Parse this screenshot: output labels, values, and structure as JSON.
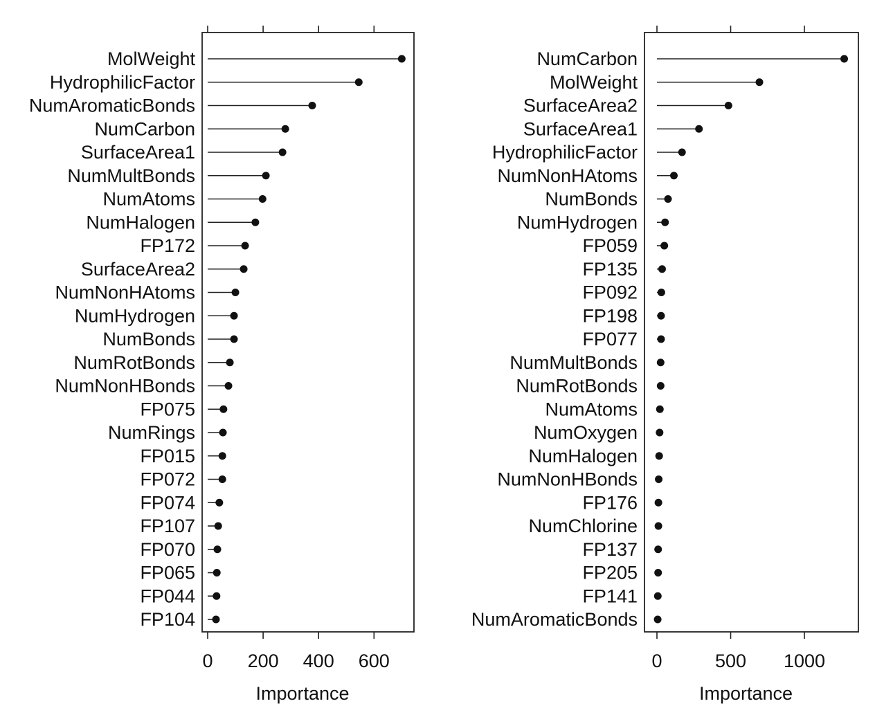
{
  "chart_data": [
    {
      "type": "dot",
      "xlabel": "Importance",
      "xlim": [
        0,
        700
      ],
      "xticks": [
        0,
        200,
        400,
        600
      ],
      "xtick_labels": [
        "0",
        "200",
        "400",
        "600"
      ],
      "categories": [
        "MolWeight",
        "HydrophilicFactor",
        "NumAromaticBonds",
        "NumCarbon",
        "SurfaceArea1",
        "NumMultBonds",
        "NumAtoms",
        "NumHalogen",
        "FP172",
        "SurfaceArea2",
        "NumNonHAtoms",
        "NumHydrogen",
        "NumBonds",
        "NumRotBonds",
        "NumNonHBonds",
        "FP075",
        "NumRings",
        "FP015",
        "FP072",
        "FP074",
        "FP107",
        "FP070",
        "FP065",
        "FP044",
        "FP104"
      ],
      "values": [
        700,
        545,
        377,
        280,
        270,
        210,
        198,
        172,
        135,
        130,
        100,
        95,
        95,
        80,
        75,
        57,
        55,
        53,
        53,
        42,
        38,
        35,
        33,
        32,
        30
      ]
    },
    {
      "type": "dot",
      "xlabel": "Importance",
      "xlim": [
        0,
        1200
      ],
      "xticks": [
        0,
        500,
        1000
      ],
      "xtick_labels": [
        "0",
        "500",
        "1000"
      ],
      "categories": [
        "NumCarbon",
        "MolWeight",
        "SurfaceArea2",
        "SurfaceArea1",
        "HydrophilicFactor",
        "NumNonHAtoms",
        "NumBonds",
        "NumHydrogen",
        "FP059",
        "FP135",
        "FP092",
        "FP198",
        "FP077",
        "NumMultBonds",
        "NumRotBonds",
        "NumAtoms",
        "NumOxygen",
        "NumHalogen",
        "NumNonHBonds",
        "FP176",
        "NumChlorine",
        "FP137",
        "FP205",
        "FP141",
        "NumAromaticBonds"
      ],
      "values": [
        1270,
        695,
        485,
        285,
        170,
        115,
        75,
        55,
        50,
        35,
        30,
        28,
        28,
        25,
        25,
        20,
        18,
        15,
        12,
        10,
        10,
        8,
        8,
        6,
        5
      ]
    }
  ]
}
